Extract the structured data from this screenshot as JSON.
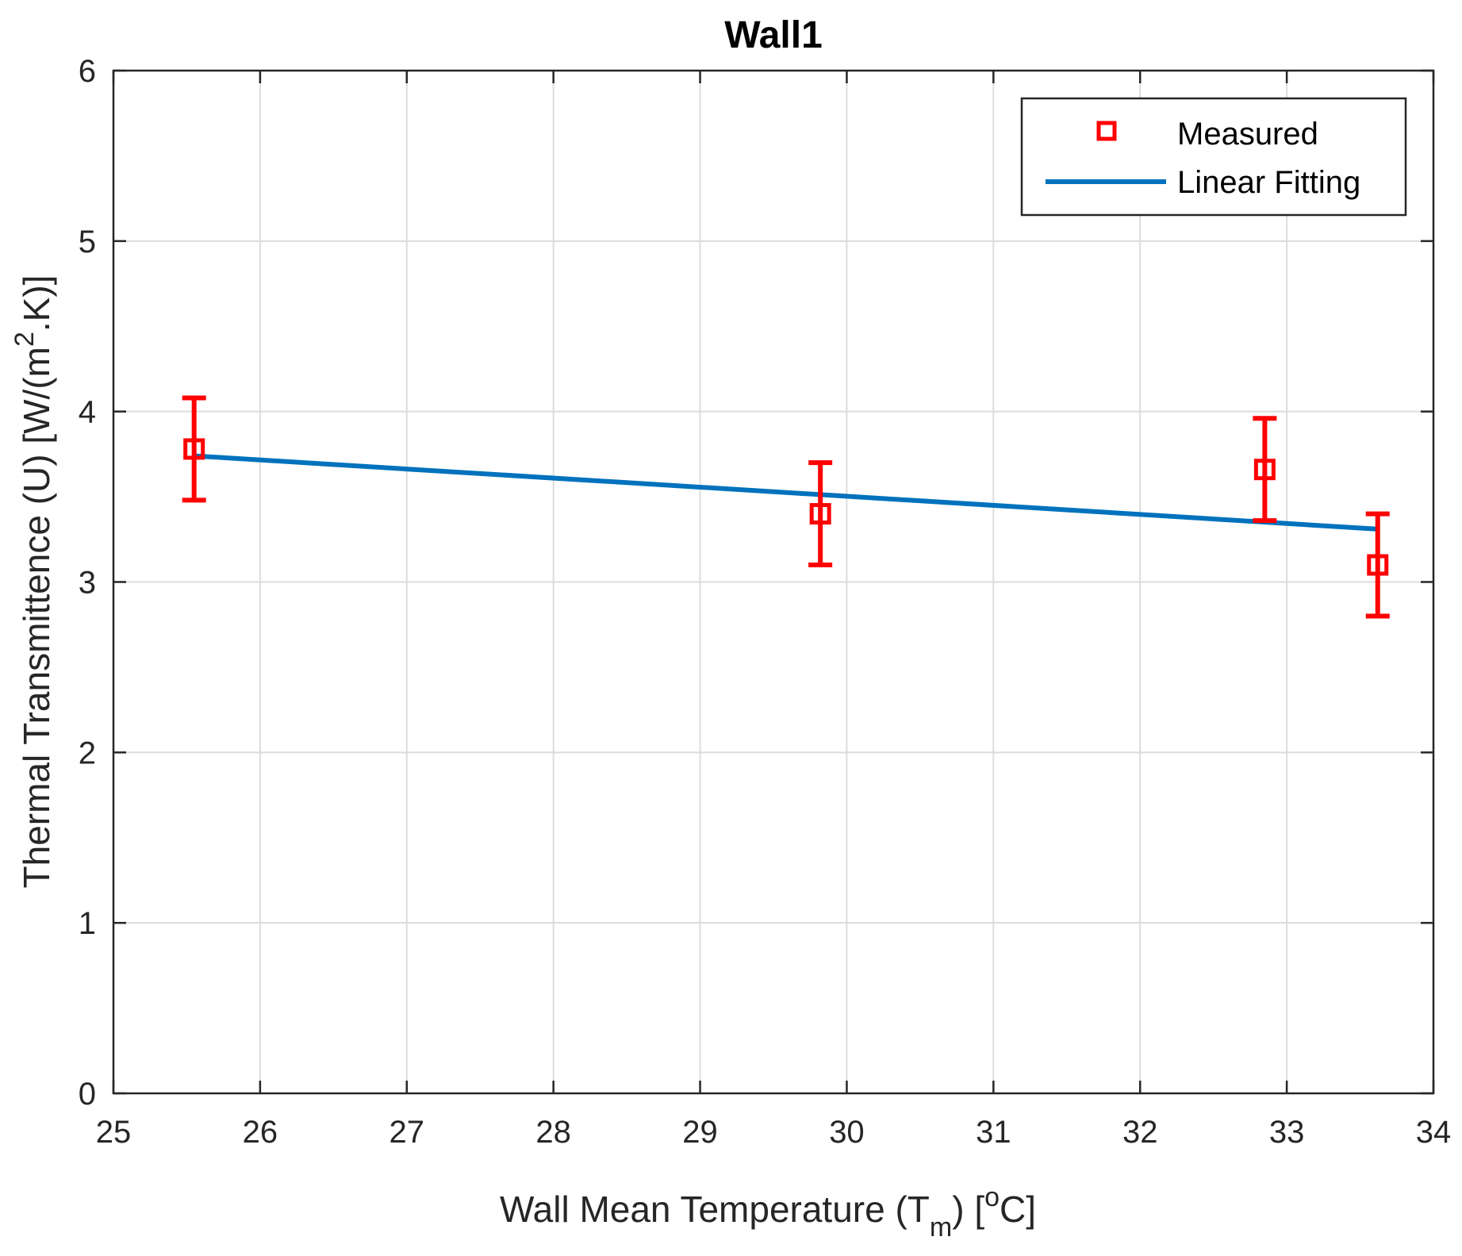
{
  "chart_data": {
    "type": "scatter",
    "title": "Wall1",
    "xlabel": {
      "prefix": "Wall Mean Temperature (T",
      "subscript": "m",
      "mid": ") [",
      "superscript": "o",
      "suffix": "C]"
    },
    "ylabel": {
      "prefix": "Thermal Transmittence (U) [W/(m",
      "superscript": "2",
      "suffix": ".K)]"
    },
    "xlim": [
      25,
      34
    ],
    "ylim": [
      0,
      6
    ],
    "xticks": [
      "25",
      "26",
      "27",
      "28",
      "29",
      "30",
      "31",
      "32",
      "33",
      "34"
    ],
    "yticks": [
      "0",
      "1",
      "2",
      "3",
      "4",
      "5",
      "6"
    ],
    "grid": true,
    "legend_position": "top-right",
    "series": [
      {
        "name": "Measured",
        "kind": "errorbar",
        "color": "#ff0000",
        "marker": "square",
        "points": [
          {
            "x": 25.55,
            "y": 3.78,
            "err": 0.3
          },
          {
            "x": 29.82,
            "y": 3.4,
            "err": 0.3
          },
          {
            "x": 32.85,
            "y": 3.66,
            "err": 0.3
          },
          {
            "x": 33.62,
            "y": 3.1,
            "err": 0.3
          }
        ]
      },
      {
        "name": "Linear Fitting",
        "kind": "line",
        "color": "#0072bd",
        "x": [
          25.55,
          33.62
        ],
        "y": [
          3.74,
          3.31
        ]
      }
    ]
  }
}
